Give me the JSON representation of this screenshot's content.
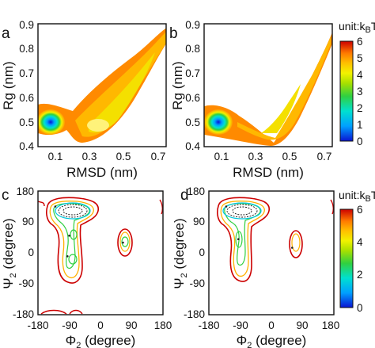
{
  "figure": {
    "colormap": [
      "#0a14d2",
      "#00a0ff",
      "#00e0d0",
      "#30d040",
      "#a8e000",
      "#f2f200",
      "#ffc000",
      "#ff7a00",
      "#ee2a00",
      "#cc0000"
    ]
  },
  "chart_data": [
    {
      "panel": "a",
      "type": "heatmap",
      "xlabel": "RMSD (nm)",
      "ylabel": "Rg (nm)",
      "xticks": [
        "0.1",
        "0.3",
        "0.5",
        "0.7"
      ],
      "yticks": [
        "0.4",
        "0.5",
        "0.6",
        "0.7",
        "0.8",
        "0.9"
      ],
      "xlim": [
        0.0,
        0.75
      ],
      "ylim": [
        0.4,
        0.9
      ],
      "minimum": {
        "x": 0.05,
        "y": 0.495,
        "value": 0
      },
      "free_energy_band_centerline": [
        [
          0.0,
          0.5
        ],
        [
          0.1,
          0.5
        ],
        [
          0.2,
          0.5
        ],
        [
          0.3,
          0.55
        ],
        [
          0.4,
          0.61
        ],
        [
          0.5,
          0.68
        ],
        [
          0.6,
          0.76
        ],
        [
          0.7,
          0.83
        ],
        [
          0.74,
          0.86
        ]
      ],
      "colorbar_range": [
        0,
        6
      ]
    },
    {
      "panel": "b",
      "type": "heatmap",
      "xlabel": "RMSD (nm)",
      "ylabel": "Rg (nm)",
      "xticks": [
        "0.1",
        "0.3",
        "0.5",
        "0.7"
      ],
      "yticks": [
        "0.4",
        "0.5",
        "0.6",
        "0.7",
        "0.8",
        "0.9"
      ],
      "xlim": [
        0.0,
        0.75
      ],
      "ylim": [
        0.4,
        0.9
      ],
      "minimum": {
        "x": 0.05,
        "y": 0.495,
        "value": 0
      },
      "free_energy_band_centerline": [
        [
          0.0,
          0.5
        ],
        [
          0.1,
          0.49
        ],
        [
          0.2,
          0.47
        ],
        [
          0.3,
          0.46
        ],
        [
          0.4,
          0.52
        ],
        [
          0.5,
          0.62
        ],
        [
          0.6,
          0.72
        ],
        [
          0.7,
          0.81
        ],
        [
          0.74,
          0.86
        ]
      ],
      "colorbar_range": [
        0,
        6
      ]
    },
    {
      "panel": "c",
      "type": "heatmap",
      "xlabel": "Φ2 (degree)",
      "ylabel": "Ψ2 (degree)",
      "xticks": [
        "-180",
        "-90",
        "0",
        "90",
        "180"
      ],
      "yticks": [
        "-180",
        "-90",
        "0",
        "90",
        "180"
      ],
      "xlim": [
        -180,
        180
      ],
      "ylim": [
        -180,
        180
      ],
      "basins": [
        {
          "phi": -130,
          "psi": 135,
          "value": 0.5
        },
        {
          "phi": -90,
          "psi": 50,
          "value": 3
        },
        {
          "phi": -95,
          "psi": -10,
          "value": 3
        },
        {
          "phi": 65,
          "psi": 30,
          "value": 3
        }
      ],
      "colorbar_range": [
        0,
        6
      ]
    },
    {
      "panel": "d",
      "type": "heatmap",
      "xlabel": "Φ2 (degree)",
      "ylabel": "Ψ2 (degree)",
      "xticks": [
        "-180",
        "-90",
        "0",
        "90",
        "180"
      ],
      "yticks": [
        "-180",
        "-90",
        "0",
        "90",
        "180"
      ],
      "xlim": [
        -180,
        180
      ],
      "ylim": [
        -180,
        180
      ],
      "basins": [
        {
          "phi": -130,
          "psi": 135,
          "value": 0.5
        },
        {
          "phi": -95,
          "psi": 40,
          "value": 3.5
        },
        {
          "phi": 60,
          "psi": 15,
          "value": 4
        }
      ],
      "colorbar_range": [
        0,
        6
      ]
    }
  ],
  "colorbars": [
    {
      "label_main": "unit:k",
      "label_sub": "B",
      "label_end": "T",
      "ticks": [
        "6",
        "5",
        "4",
        "3",
        "2",
        "1",
        "0"
      ]
    },
    {
      "label_main": "unit:k",
      "label_sub": "B",
      "label_end": "T",
      "ticks": [
        "6",
        "4",
        "2",
        "0"
      ]
    }
  ],
  "panel_letters": [
    "a",
    "b",
    "c",
    "d"
  ],
  "axis_text": {
    "rmsd": "RMSD (nm)",
    "rg": "Rg (nm)",
    "phi_main": "Φ",
    "phi_rest": " (degree)",
    "psi_main": "Ψ",
    "psi_rest": " (degree)",
    "sub2": "2"
  }
}
